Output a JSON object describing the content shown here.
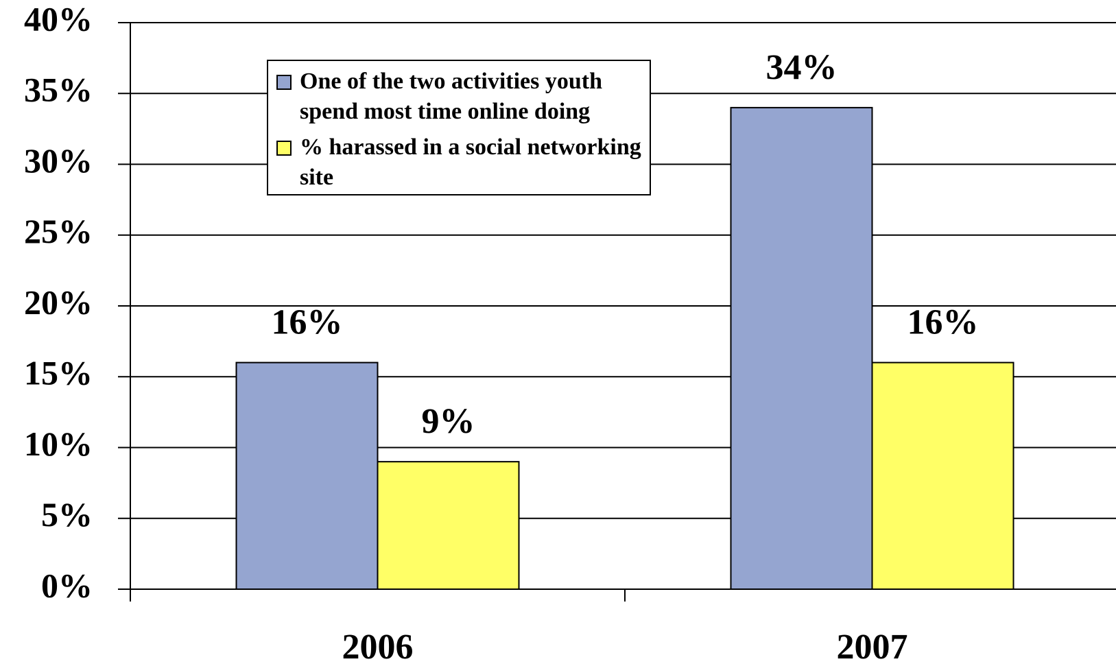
{
  "chart_data": {
    "type": "bar",
    "categories": [
      "2006",
      "2007"
    ],
    "series": [
      {
        "name": "One of the two activities youth spend most time online doing",
        "color": "#95a5d0",
        "values": [
          16,
          34
        ],
        "value_labels": [
          "16%",
          "34%"
        ]
      },
      {
        "name": "% harassed in a social networking site",
        "color": "#ffff66",
        "values": [
          9,
          16
        ],
        "value_labels": [
          "9%",
          "16%"
        ]
      }
    ],
    "ylim": [
      0,
      40
    ],
    "yticks": [
      {
        "value": 0,
        "label": "0%"
      },
      {
        "value": 5,
        "label": "5%"
      },
      {
        "value": 10,
        "label": "10%"
      },
      {
        "value": 15,
        "label": "15%"
      },
      {
        "value": 20,
        "label": "20%"
      },
      {
        "value": 25,
        "label": "25%"
      },
      {
        "value": 30,
        "label": "30%"
      },
      {
        "value": 35,
        "label": "35%"
      },
      {
        "value": 40,
        "label": "40%"
      }
    ],
    "grid": true
  }
}
